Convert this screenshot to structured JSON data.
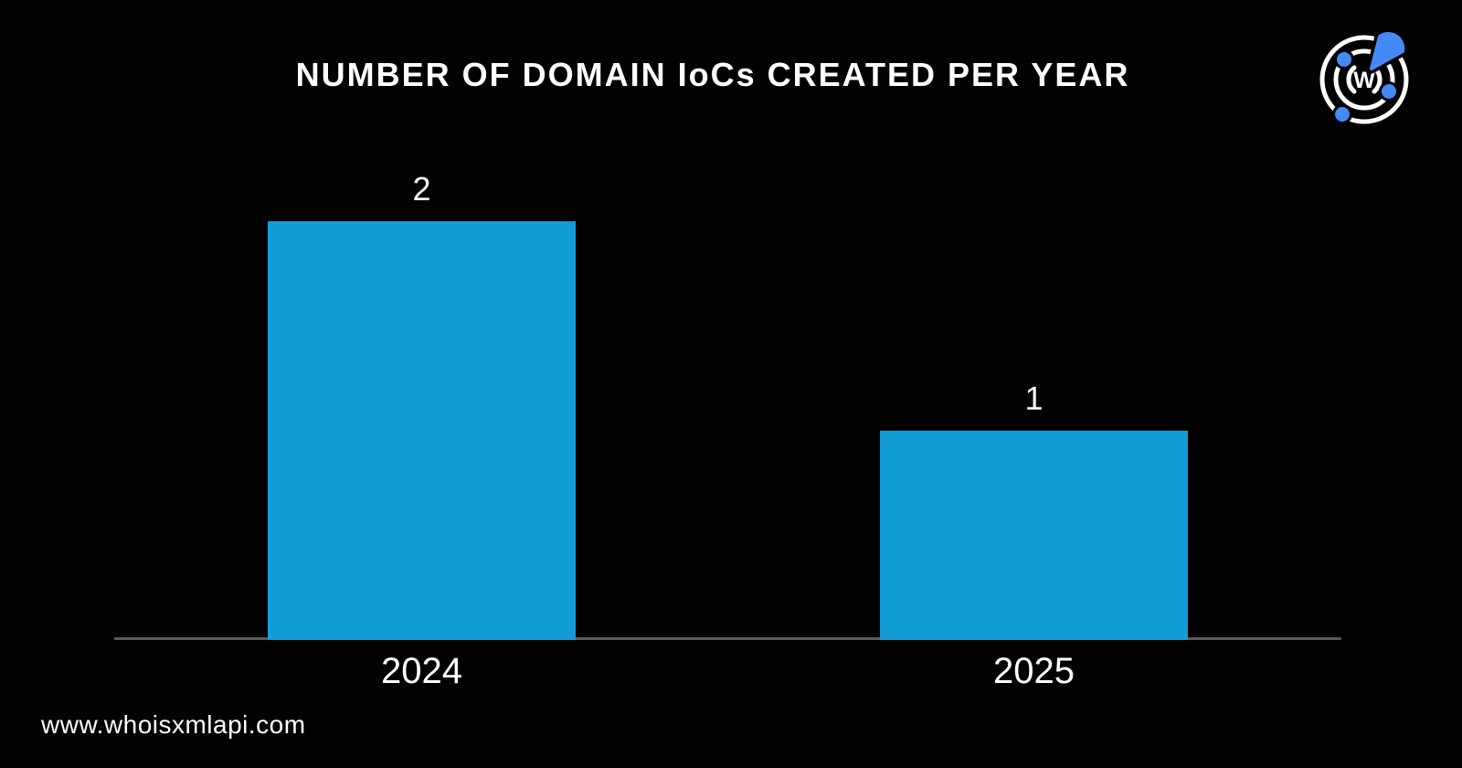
{
  "logo": {
    "name": "whoisxmlapi-logo",
    "letter": "W"
  },
  "footer": {
    "website": "www.whoisxmlapi.com"
  },
  "colors": {
    "background": "#020202",
    "bar": "#139dd7",
    "axis": "#58595b",
    "text": "#ffffff",
    "logo_blue": "#4589f4"
  },
  "chart_data": {
    "type": "bar",
    "title": "NUMBER OF DOMAIN IoCs CREATED PER YEAR",
    "categories": [
      "2024",
      "2025"
    ],
    "values": [
      2,
      1
    ],
    "value_labels": [
      "2",
      "1"
    ],
    "xlabel": "",
    "ylabel": "",
    "ylim": [
      0,
      2
    ],
    "grid": false,
    "legend": false,
    "bar_color": "#139dd7",
    "background": "#020202",
    "axis_color": "#58595b",
    "value_labels_shown": true
  }
}
